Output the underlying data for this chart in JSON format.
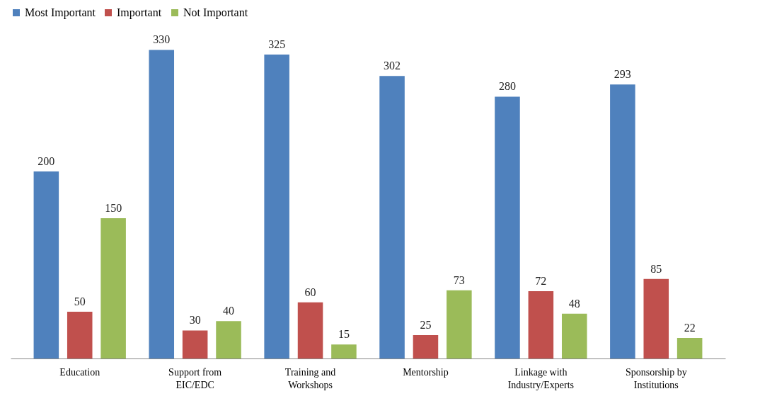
{
  "chart_data": {
    "type": "bar",
    "categories": [
      "Education",
      "Support from\nEIC/EDC",
      "Training and\nWorkshops",
      "Mentorship",
      "Linkage with\nIndustry/Experts",
      "Sponsorship by\nInstitutions"
    ],
    "series": [
      {
        "name": "Most Important",
        "color": "#4f81bd",
        "values": [
          200,
          330,
          325,
          302,
          280,
          293
        ]
      },
      {
        "name": "Important",
        "color": "#c0504d",
        "values": [
          50,
          30,
          60,
          25,
          72,
          85
        ]
      },
      {
        "name": "Not Important",
        "color": "#9bbb59",
        "values": [
          150,
          40,
          15,
          73,
          48,
          22
        ]
      }
    ],
    "data_labels": true,
    "legend": "top",
    "grid": false
  }
}
